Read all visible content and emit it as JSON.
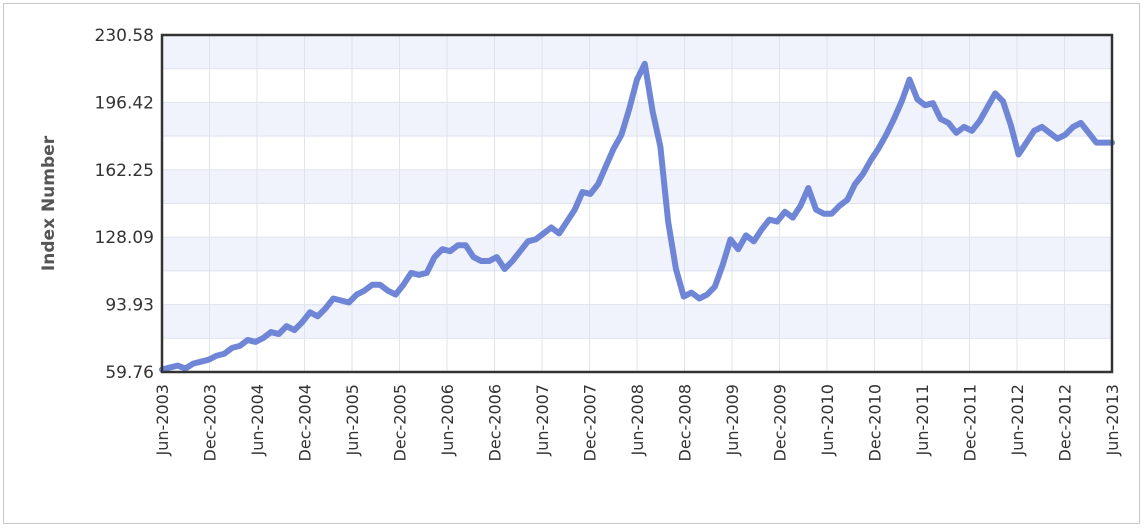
{
  "chart_data": {
    "type": "line",
    "title": "",
    "xlabel": "",
    "ylabel": "Index Number",
    "ylim": [
      59.76,
      230.58
    ],
    "yticks": [
      "230.58",
      "196.42",
      "162.25",
      "128.09",
      "93.93",
      "59.76"
    ],
    "xticks": [
      "Jun-2003",
      "Dec-2003",
      "Jun-2004",
      "Dec-2004",
      "Jun-2005",
      "Dec-2005",
      "Jun-2006",
      "Dec-2006",
      "Jun-2007",
      "Dec-2007",
      "Jun-2008",
      "Dec-2008",
      "Jun-2009",
      "Dec-2009",
      "Jun-2010",
      "Dec-2010",
      "Jun-2011",
      "Dec-2011",
      "Jun-2012",
      "Dec-2012",
      "Jun-2013"
    ],
    "grid": true,
    "line_color": "#6f86d6",
    "band_colors": [
      "#f0f3fb",
      "#ffffff"
    ],
    "series": [
      {
        "name": "",
        "values": [
          61,
          62,
          63,
          61.5,
          64,
          65,
          66,
          68,
          69,
          72,
          73,
          76,
          75,
          77,
          80,
          79,
          83,
          81,
          85,
          90,
          88,
          92,
          97,
          96,
          95,
          99,
          101,
          104,
          104,
          101,
          99,
          104,
          110,
          109,
          110,
          118,
          122,
          121,
          124,
          124,
          118,
          116,
          116,
          118,
          112,
          116,
          121,
          126,
          127,
          130,
          133,
          130,
          136,
          142,
          151,
          150,
          155,
          164,
          173,
          180,
          193,
          208,
          216,
          192,
          174,
          136,
          112,
          98,
          100,
          97,
          99,
          103,
          114,
          127,
          122,
          129,
          126,
          132,
          137,
          136,
          141,
          138,
          144,
          153,
          142,
          140,
          140,
          144,
          147,
          155,
          160,
          167,
          173,
          180,
          188,
          197,
          208,
          198,
          195,
          196,
          188,
          186,
          181,
          184,
          182,
          187,
          194,
          201,
          197,
          185,
          170,
          176,
          182,
          184,
          181,
          178,
          180,
          184,
          186,
          181,
          176,
          176,
          176
        ]
      }
    ]
  }
}
